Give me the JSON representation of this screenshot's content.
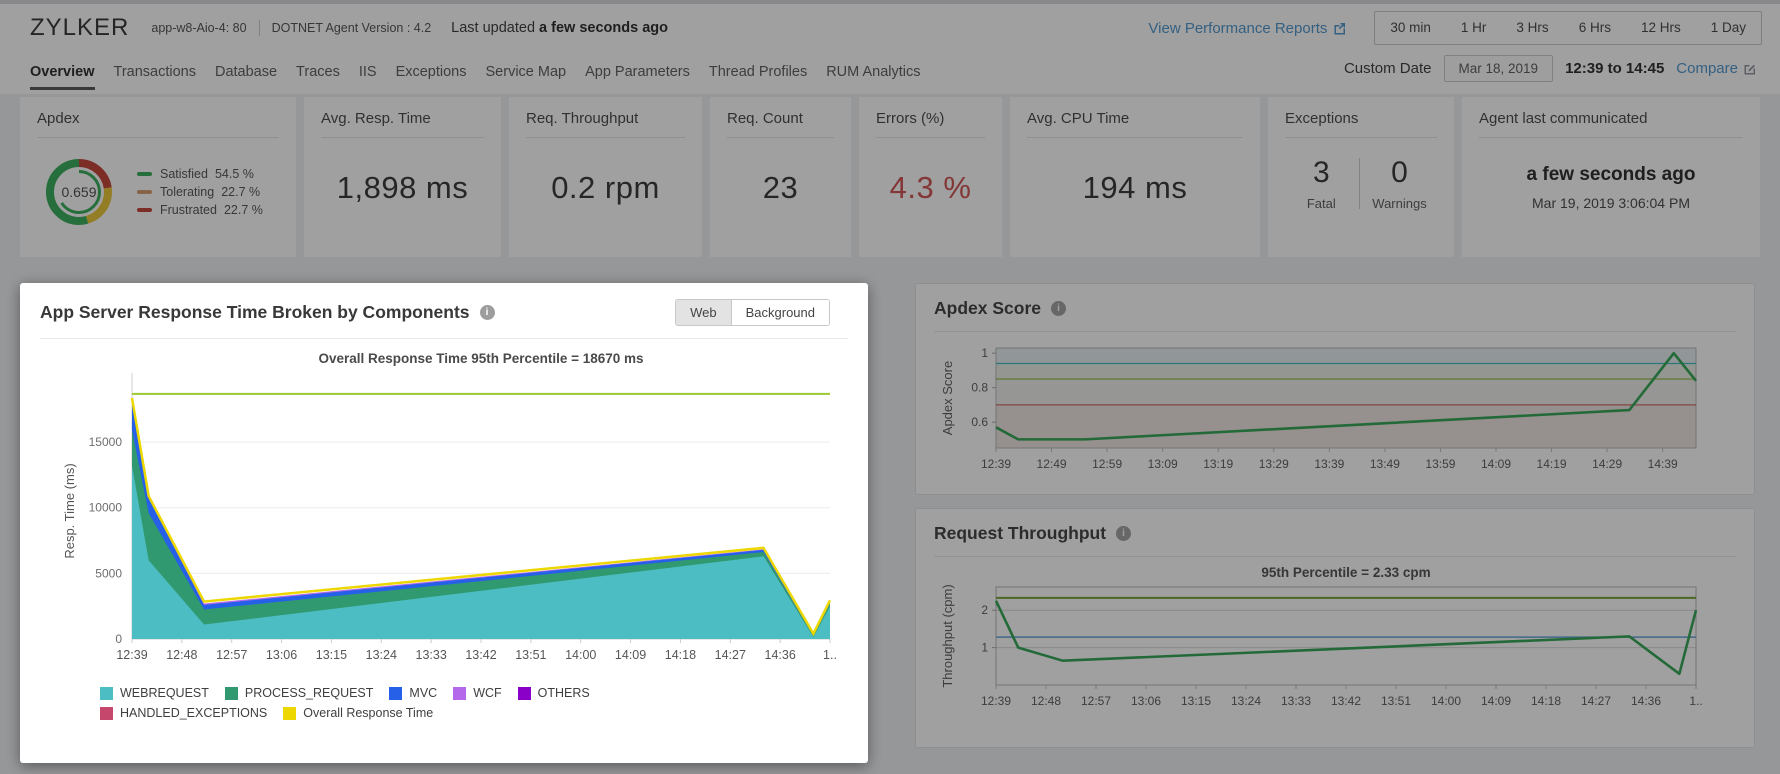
{
  "icons": {
    "info": "i"
  },
  "header": {
    "app_name": "ZYLKER",
    "host": "app-w8-Aio-4: 80",
    "agent_version": "DOTNET Agent Version : 4.2",
    "last_updated_label": "Last updated",
    "last_updated_value": "a few seconds ago",
    "reports_link": "View Performance Reports",
    "time_ranges": [
      "30 min",
      "1 Hr",
      "3 Hrs",
      "6 Hrs",
      "12 Hrs",
      "1 Day"
    ]
  },
  "nav": {
    "tabs": [
      {
        "label": "Overview",
        "active": true
      },
      {
        "label": "Transactions",
        "active": false
      },
      {
        "label": "Database",
        "active": false
      },
      {
        "label": "Traces",
        "active": false
      },
      {
        "label": "IIS",
        "active": false
      },
      {
        "label": "Exceptions",
        "active": false
      },
      {
        "label": "Service Map",
        "active": false
      },
      {
        "label": "App Parameters",
        "active": false
      },
      {
        "label": "Thread Profiles",
        "active": false
      },
      {
        "label": "RUM Analytics",
        "active": false
      }
    ],
    "custom_date_label": "Custom Date",
    "custom_date_value": "Mar 18, 2019",
    "time_window": "12:39 to 14:45",
    "compare_label": "Compare"
  },
  "cards": {
    "apdex": {
      "title": "Apdex",
      "score": "0.659",
      "legend": [
        {
          "label": "Satisfied",
          "value": "54.5 %",
          "swatch": "#2daa52"
        },
        {
          "label": "Tolerating",
          "value": "22.7 %",
          "swatch": "#d29a66"
        },
        {
          "label": "Frustrated",
          "value": "22.7 %",
          "swatch": "#c0392b"
        }
      ],
      "donut": {
        "segments": [
          {
            "name": "Frustrated",
            "pct": 22.7,
            "color": "#c0392b"
          },
          {
            "name": "Tolerating",
            "pct": 22.7,
            "color": "#e8c52c"
          },
          {
            "name": "Satisfied",
            "pct": 54.6,
            "color": "#2daa52"
          }
        ],
        "inner_arc": {
          "pct": 66,
          "color": "#2daa52"
        }
      }
    },
    "avg_resp_time": {
      "title": "Avg. Resp. Time",
      "value": "1,898 ms"
    },
    "req_throughput": {
      "title": "Req. Throughput",
      "value": "0.2 rpm"
    },
    "req_count": {
      "title": "Req. Count",
      "value": "23"
    },
    "errors": {
      "title": "Errors (%)",
      "value": "4.3 %",
      "color": "#cd4a47"
    },
    "avg_cpu": {
      "title": "Avg. CPU Time",
      "value": "194 ms"
    },
    "exceptions": {
      "title": "Exceptions",
      "fatal": "3",
      "warnings": "0",
      "fatal_label": "Fatal",
      "warnings_label": "Warnings"
    },
    "agent": {
      "title": "Agent last communicated",
      "value": "a few seconds ago",
      "timestamp": "Mar 19, 2019 3:06:04 PM"
    }
  },
  "main_panel": {
    "title": "App Server Response Time Broken by Components",
    "toggle_options": [
      "Web",
      "Background"
    ],
    "toggle_selected": "Web"
  },
  "apdex_panel": {
    "title": "Apdex Score"
  },
  "throughput_panel": {
    "title": "Request Throughput"
  },
  "chart_data": [
    {
      "id": "components",
      "type": "area",
      "title": "Overall Response Time 95th Percentile = 18670 ms",
      "ylabel": "Resp. Time (ms)",
      "yticks": [
        0,
        5000,
        10000,
        15000
      ],
      "ylim": [
        0,
        19500
      ],
      "xlim": [
        0,
        126
      ],
      "percentile_value": 18670,
      "percentile_color": "#9cc832",
      "x_label_step": 9,
      "x_labels": [
        "12:39",
        "12:48",
        "12:57",
        "13:06",
        "13:15",
        "13:24",
        "13:33",
        "13:42",
        "13:51",
        "14:00",
        "14:09",
        "14:18",
        "14:27",
        "14:36",
        "1.."
      ],
      "x": [
        0,
        3,
        13,
        114,
        123,
        126
      ],
      "series": [
        {
          "name": "WEBREQUEST",
          "type": "area",
          "color": "#4cbdc3",
          "values": [
            13200,
            6000,
            1100,
            6300,
            150,
            2500
          ]
        },
        {
          "name": "PROCESS_REQUEST",
          "type": "area",
          "color": "#31996f",
          "values": [
            15900,
            9600,
            2250,
            6620,
            230,
            2700
          ]
        },
        {
          "name": "MVC",
          "type": "area",
          "color": "#2760e8",
          "values": [
            18150,
            10750,
            2600,
            6790,
            300,
            2840
          ]
        },
        {
          "name": "WCF",
          "type": "area",
          "color": "#b468ea",
          "values": [
            18230,
            10800,
            2700,
            6830,
            320,
            2880
          ]
        },
        {
          "name": "OTHERS",
          "type": "area",
          "color": "#8a00c8",
          "values": [
            0,
            0,
            0,
            0,
            0,
            0
          ]
        },
        {
          "name": "HANDLED_EXCEPTIONS",
          "type": "area",
          "color": "#c5476b",
          "values": [
            0,
            0,
            0,
            0,
            0,
            0
          ]
        },
        {
          "name": "Overall Response Time",
          "type": "line",
          "color": "#ecd800",
          "values": [
            18350,
            10900,
            2850,
            6940,
            400,
            2950
          ]
        }
      ],
      "legend_split": 5
    },
    {
      "id": "apdex",
      "type": "line",
      "ylabel": "Apdex Score",
      "yticks": [
        1,
        0.8,
        0.6
      ],
      "ylim": [
        0.45,
        1.03
      ],
      "xlim": [
        0,
        126
      ],
      "x_label_step": 10,
      "x_labels": [
        "12:39",
        "12:49",
        "12:59",
        "13:09",
        "13:19",
        "13:29",
        "13:39",
        "13:49",
        "13:59",
        "14:09",
        "14:19",
        "14:29",
        "14:39"
      ],
      "thresholds": [
        {
          "value": 0.94,
          "color": "#35b8be"
        },
        {
          "value": 0.85,
          "color": "#8fb842"
        },
        {
          "value": 0.7,
          "color": "#cc6a5e"
        }
      ],
      "bands": [
        {
          "from": 1.03,
          "to": 0.94,
          "color": "rgba(126,176,181,0.20)"
        },
        {
          "from": 0.94,
          "to": 0.85,
          "color": "rgba(152,178,120,0.20)"
        },
        {
          "from": 0.85,
          "to": 0.7,
          "color": "rgba(168,176,145,0.20)"
        },
        {
          "from": 0.7,
          "to": 0.45,
          "color": "rgba(193,154,144,0.28)"
        }
      ],
      "x": [
        0,
        4,
        16,
        114,
        122,
        126
      ],
      "values": [
        0.57,
        0.5,
        0.5,
        0.67,
        1.0,
        0.84
      ],
      "color": "#28a24b"
    },
    {
      "id": "throughput",
      "type": "line",
      "title": "95th Percentile = 2.33 cpm",
      "ylabel": "Throughput (cpm)",
      "yticks": [
        2,
        1
      ],
      "ylim": [
        0,
        2.62
      ],
      "xlim": [
        0,
        126
      ],
      "x_label_step": 9,
      "x_labels": [
        "12:39",
        "12:48",
        "12:57",
        "13:06",
        "13:15",
        "13:24",
        "13:33",
        "13:42",
        "13:51",
        "14:00",
        "14:09",
        "14:18",
        "14:27",
        "14:36",
        "1.."
      ],
      "percentile": {
        "value": 2.33,
        "color": "#6f9c2a"
      },
      "average": {
        "value": 1.28,
        "color": "#5a9fd4"
      },
      "x": [
        0,
        4,
        12,
        114,
        123,
        126
      ],
      "values": [
        2.25,
        1.0,
        0.65,
        1.3,
        0.3,
        2.0
      ],
      "color": "#28a24b"
    }
  ]
}
